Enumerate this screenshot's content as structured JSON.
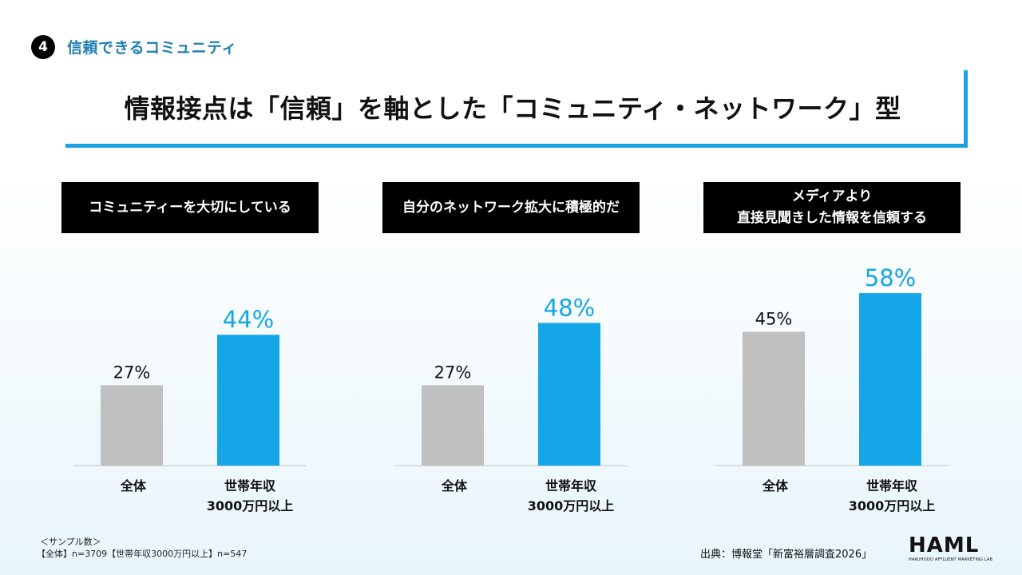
{
  "section": {
    "number": "4",
    "label": "信頼できるコミュニティ"
  },
  "page_title": "情報接点は「信頼」を軸とした「コミュニティ・ネットワーク」型",
  "colors": {
    "overall": "#c0c0c0",
    "high_income": "#14a6e6",
    "accent": "#1aa3e0",
    "section_text": "#1e7fb5"
  },
  "chart_data": [
    {
      "type": "bar",
      "title": "コミュニティーを大切にしている",
      "categories": [
        "全体",
        "世帯年収\n3000万円以上"
      ],
      "values": [
        27,
        44
      ],
      "value_labels": [
        "27%",
        "44%"
      ],
      "ylim": [
        0,
        65
      ],
      "grid": false,
      "legend": "none"
    },
    {
      "type": "bar",
      "title": "自分のネットワーク拡大に積極的だ",
      "categories": [
        "全体",
        "世帯年収\n3000万円以上"
      ],
      "values": [
        27,
        48
      ],
      "value_labels": [
        "27%",
        "48%"
      ],
      "ylim": [
        0,
        65
      ],
      "grid": false,
      "legend": "none"
    },
    {
      "type": "bar",
      "title": "メディアより\n直接見聞きした情報を信頼する",
      "categories": [
        "全体",
        "世帯年収\n3000万円以上"
      ],
      "values": [
        45,
        58
      ],
      "value_labels": [
        "45%",
        "58%"
      ],
      "ylim": [
        0,
        65
      ],
      "grid": false,
      "legend": "none"
    }
  ],
  "footnote": {
    "sample_title": "＜サンプル数＞",
    "sample_detail": "【全体】n=3709【世帯年収3000万円以上】n=547"
  },
  "source": "出典：博報堂「新富裕層調査2026」",
  "logo": {
    "main": "HAML",
    "sub": "HAKUHODO AFFLUENT MARKETING LAB"
  }
}
